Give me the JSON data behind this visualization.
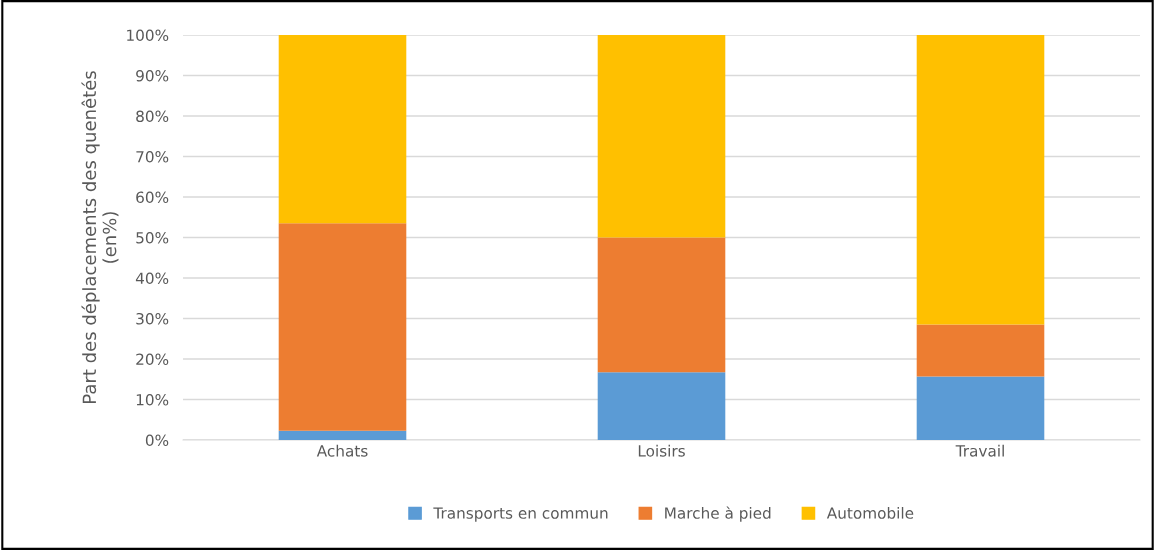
{
  "chart_data": {
    "type": "bar",
    "stacked": true,
    "ylabel": "Part des déplacements des quenêtés\n(en%)",
    "categories": [
      "Achats",
      "Loisirs",
      "Travail"
    ],
    "series": [
      {
        "name": "Transports en commun",
        "color": "#5b9bd5",
        "values": [
          2.3,
          16.7,
          15.7
        ]
      },
      {
        "name": "Marche à pied",
        "color": "#ed7d31",
        "values": [
          51.2,
          33.3,
          12.8
        ]
      },
      {
        "name": "Automobile",
        "color": "#ffc000",
        "values": [
          46.5,
          50.0,
          71.5
        ]
      }
    ],
    "ylim": [
      0,
      100
    ],
    "yticks": [
      {
        "value": 0,
        "label": "0%"
      },
      {
        "value": 10,
        "label": "10%"
      },
      {
        "value": 20,
        "label": "20%"
      },
      {
        "value": 30,
        "label": "30%"
      },
      {
        "value": 40,
        "label": "40%"
      },
      {
        "value": 50,
        "label": "50%"
      },
      {
        "value": 60,
        "label": "60%"
      },
      {
        "value": 70,
        "label": "70%"
      },
      {
        "value": 80,
        "label": "80%"
      },
      {
        "value": 90,
        "label": "90%"
      },
      {
        "value": 100,
        "label": "100%"
      }
    ],
    "grid": "y",
    "legend": "bottom"
  }
}
